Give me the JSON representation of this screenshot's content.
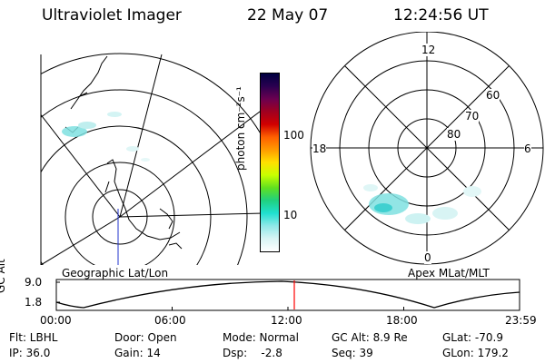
{
  "header": {
    "instrument": "Ultraviolet Imager",
    "date": "22 May 07",
    "time": "12:24:56 UT"
  },
  "colorbar": {
    "unit_label": "photon cm⁻²s⁻¹",
    "ticks": [
      "100",
      "10"
    ],
    "colors": [
      "#000040",
      "#2a0050",
      "#6a0050",
      "#a00020",
      "#d00000",
      "#ff6000",
      "#ff9a00",
      "#ffe000",
      "#c8ff00",
      "#60e020",
      "#20d080",
      "#20e0d0",
      "#90e8e8",
      "#d8f4f4",
      "#ffffff"
    ]
  },
  "left_map": {
    "label": "Geographic Lat/Lon"
  },
  "right_map": {
    "label": "Apex MLat/MLT",
    "mlt_labels": [
      "12",
      "18",
      "6",
      "0"
    ],
    "mlat_labels": [
      "60",
      "70",
      "80"
    ]
  },
  "orbit_plot": {
    "ylabel": "GC Alt",
    "yticks": [
      "9.0",
      "1.8"
    ],
    "xticks": [
      "00:00",
      "06:00",
      "12:00",
      "18:00",
      "23:59"
    ],
    "current_time_color": "#ff0000"
  },
  "info": {
    "filter": "Flt: LBHL",
    "ip": "IP: 36.0",
    "door": "Door: Open",
    "gain": "Gain: 14",
    "mode": "Mode: Normal",
    "dsp": "Dsp:    -2.8",
    "gc_alt": "GC Alt: 8.9 Re",
    "seq": "Seq: 39",
    "glat": "GLat: -70.9",
    "glon": "GLon: 179.2"
  }
}
